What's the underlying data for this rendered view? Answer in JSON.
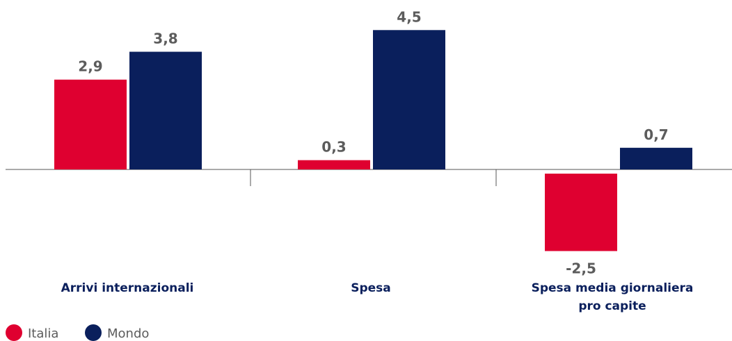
{
  "chart_data": {
    "type": "bar",
    "categories": [
      [
        "Arrivi internazionali"
      ],
      [
        "Spesa"
      ],
      [
        "Spesa media giornaliera",
        "pro capite"
      ]
    ],
    "series": [
      {
        "name": "Italia",
        "color": "#df0030",
        "values": [
          2.9,
          0.3,
          -2.5
        ],
        "labels": [
          "2,9",
          "0,3",
          "-2,5"
        ]
      },
      {
        "name": "Mondo",
        "color": "#0a1f5c",
        "values": [
          3.8,
          4.5,
          0.7
        ],
        "labels": [
          "3,8",
          "4,5",
          "0,7"
        ]
      }
    ],
    "ylim": [
      -2.5,
      4.5
    ],
    "grid": false,
    "legend": "bottom-left"
  }
}
